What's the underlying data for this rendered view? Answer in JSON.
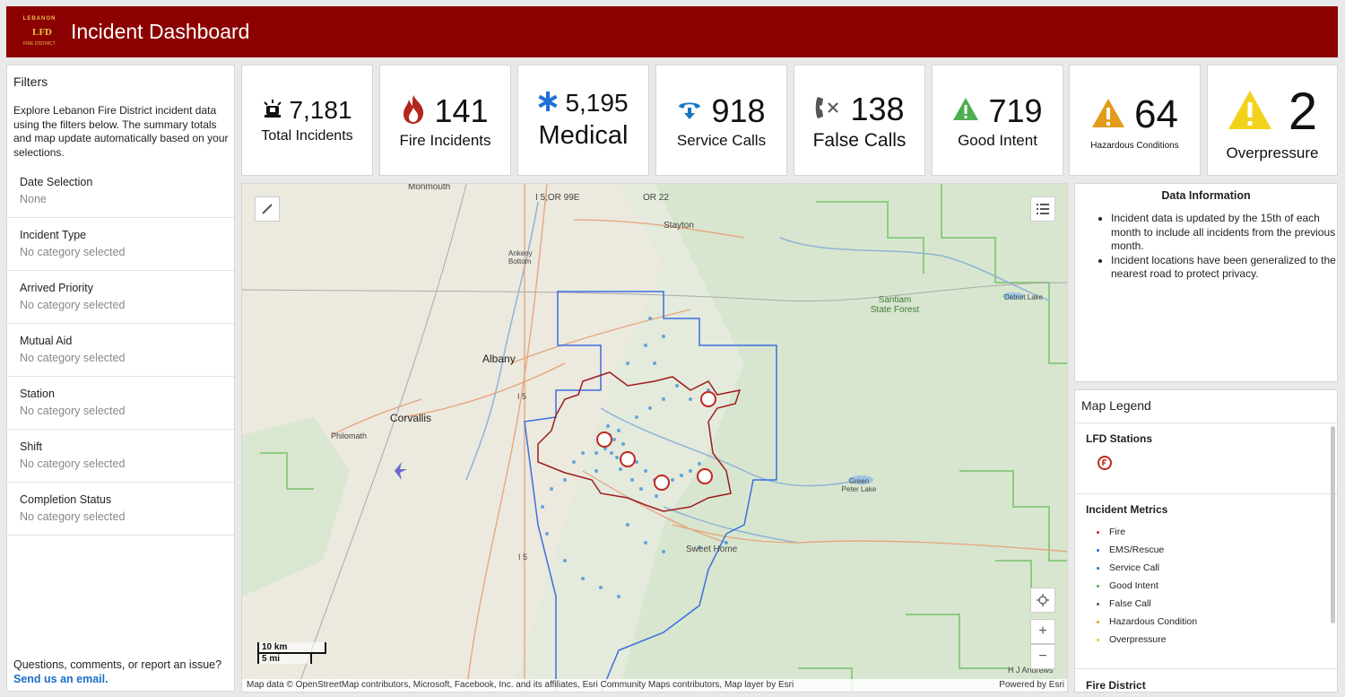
{
  "header": {
    "title": "Incident Dashboard",
    "logo_text": "LEBANON",
    "logo_mid": "LFD",
    "logo_bottom": "FIRE DISTRICT"
  },
  "filters": {
    "title": "Filters",
    "intro": "Explore Lebanon Fire District incident data using the filters below. The summary totals and map update automatically based on your selections.",
    "rows": [
      {
        "label": "Date Selection",
        "value": "None"
      },
      {
        "label": "Incident Type",
        "value": "No category selected"
      },
      {
        "label": "Arrived Priority",
        "value": "No category selected"
      },
      {
        "label": "Mutual Aid",
        "value": "No category selected"
      },
      {
        "label": "Station",
        "value": "No category selected"
      },
      {
        "label": "Shift",
        "value": "No category selected"
      },
      {
        "label": "Completion Status",
        "value": "No category selected"
      }
    ],
    "footer_question": "Questions, comments, or report an issue?",
    "footer_link": "Send us an email."
  },
  "kpis": {
    "total": {
      "value": "7,181",
      "label": "Total Incidents",
      "icon": "siren-icon"
    },
    "fire": {
      "value": "141",
      "label": "Fire Incidents",
      "icon": "flame-icon",
      "color": "#c0281f"
    },
    "medical": {
      "value": "5,195",
      "label": "Medical",
      "icon": "star-of-life-icon",
      "color": "#1e6fd9"
    },
    "service": {
      "value": "918",
      "label": "Service Calls",
      "icon": "service-arrow-icon",
      "color": "#1577c4"
    },
    "false": {
      "value": "138",
      "label": "False Calls",
      "icon": "phone-x-icon",
      "color": "#555555"
    },
    "good": {
      "value": "719",
      "label": "Good Intent",
      "icon": "warning-green-icon",
      "color": "#4caf50"
    },
    "hazard": {
      "value": "64",
      "label": "Hazardous Conditions",
      "icon": "warning-orange-icon",
      "color": "#e39b1c"
    },
    "overpressure": {
      "value": "2",
      "label": "Overpressure",
      "icon": "warning-yellow-icon",
      "color": "#f2d31b"
    }
  },
  "map": {
    "labels": {
      "monmouth": "Monmouth",
      "i5_or99e": "I 5;OR 99E",
      "or22": "OR 22",
      "stayton": "Stayton",
      "ankeny": "Ankeny Bottom",
      "santiam": "Santiam State Forest",
      "detroit": "Detroit Lake",
      "albany": "Albany",
      "corvallis": "Corvallis",
      "philomath": "Philomath",
      "i5a": "I 5",
      "i5b": "I 5",
      "green_peter": "Green Peter Lake",
      "sweet_home": "Sweet Home",
      "hj": "H J Andrews"
    },
    "scale_km": "10 km",
    "scale_mi": "5 mi",
    "attribution": "Map data © OpenStreetMap contributors, Microsoft, Facebook, Inc. and its affiliates, Esri Community Maps contributors, Map layer by Esri",
    "powered": "Powered by Esri"
  },
  "info": {
    "title": "Data Information",
    "bullets": [
      "Incident data is updated by the 15th of each month to include all incidents from the previous month.",
      "Incident locations have been generalized to the nearest road to protect privacy."
    ]
  },
  "legend": {
    "title": "Map Legend",
    "stations_title": "LFD Stations",
    "metrics_title": "Incident Metrics",
    "items": [
      {
        "label": "Fire",
        "color": "#c0281f"
      },
      {
        "label": "EMS/Rescue",
        "color": "#1e6fd9"
      },
      {
        "label": "Service Call",
        "color": "#1577c4"
      },
      {
        "label": "Good Intent",
        "color": "#4caf50"
      },
      {
        "label": "False Call",
        "color": "#555555"
      },
      {
        "label": "Hazardous Condition",
        "color": "#e39b1c"
      },
      {
        "label": "Overpressure",
        "color": "#f2d31b"
      }
    ],
    "district_title": "Fire District"
  }
}
